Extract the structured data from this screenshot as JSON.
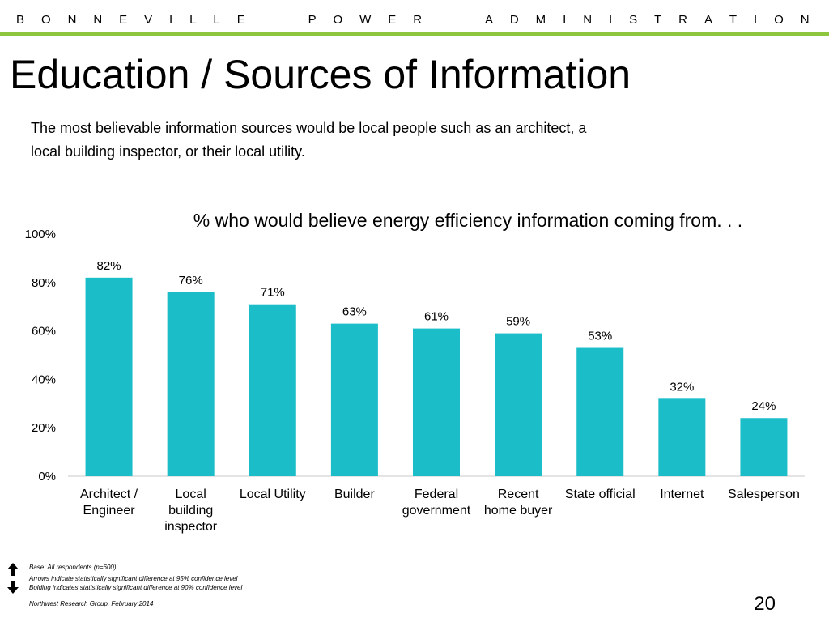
{
  "header": {
    "brand_words": [
      [
        "B",
        "O",
        "N",
        "N",
        "E",
        "V",
        "I",
        "L",
        "L",
        "E"
      ],
      [
        "P",
        "O",
        "W",
        "E",
        "R"
      ],
      [
        "A",
        "D",
        "M",
        "I",
        "N",
        "I",
        "S",
        "T",
        "R",
        "A",
        "T",
        "I",
        "O",
        "N"
      ]
    ],
    "rule_color": "#8dc63f"
  },
  "slide": {
    "title": "Education / Sources of Information",
    "intro_line1": "The most believable information sources would be local people such as an architect, a",
    "intro_line2": "local building inspector, or their local utility.",
    "page_number": "20"
  },
  "footnotes": {
    "base": "Base: All respondents (n=600)",
    "arrows": "Arrows indicate statistically significant difference at 95% confidence level",
    "bolding": "Bolding indicates statistically significant difference at 90% confidence level",
    "source": "Northwest Research Group, February 2014",
    "up_arrow_icon": "arrow-up-icon",
    "down_arrow_icon": "arrow-down-icon"
  },
  "chart_data": {
    "type": "bar",
    "title": "% who would believe energy efficiency information coming from. . .",
    "categories": [
      [
        "Architect /",
        "Engineer"
      ],
      [
        "Local",
        "building",
        "inspector"
      ],
      [
        "Local Utility"
      ],
      [
        "Builder"
      ],
      [
        "Federal",
        "government"
      ],
      [
        "Recent",
        "home buyer"
      ],
      [
        "State official"
      ],
      [
        "Internet"
      ],
      [
        "Salesperson"
      ]
    ],
    "values": [
      82,
      76,
      71,
      63,
      61,
      59,
      53,
      32,
      24
    ],
    "value_labels": [
      "82%",
      "76%",
      "71%",
      "63%",
      "61%",
      "59%",
      "53%",
      "32%",
      "24%"
    ],
    "ylim": [
      0,
      100
    ],
    "yticks": [
      {
        "value": 0,
        "label": "0%"
      },
      {
        "value": 20,
        "label": "20%"
      },
      {
        "value": 40,
        "label": "40%"
      },
      {
        "value": 60,
        "label": "60%"
      },
      {
        "value": 80,
        "label": "80%"
      },
      {
        "value": 100,
        "label": "100%"
      }
    ],
    "bar_color": "#1bbdc8",
    "grid": false
  }
}
